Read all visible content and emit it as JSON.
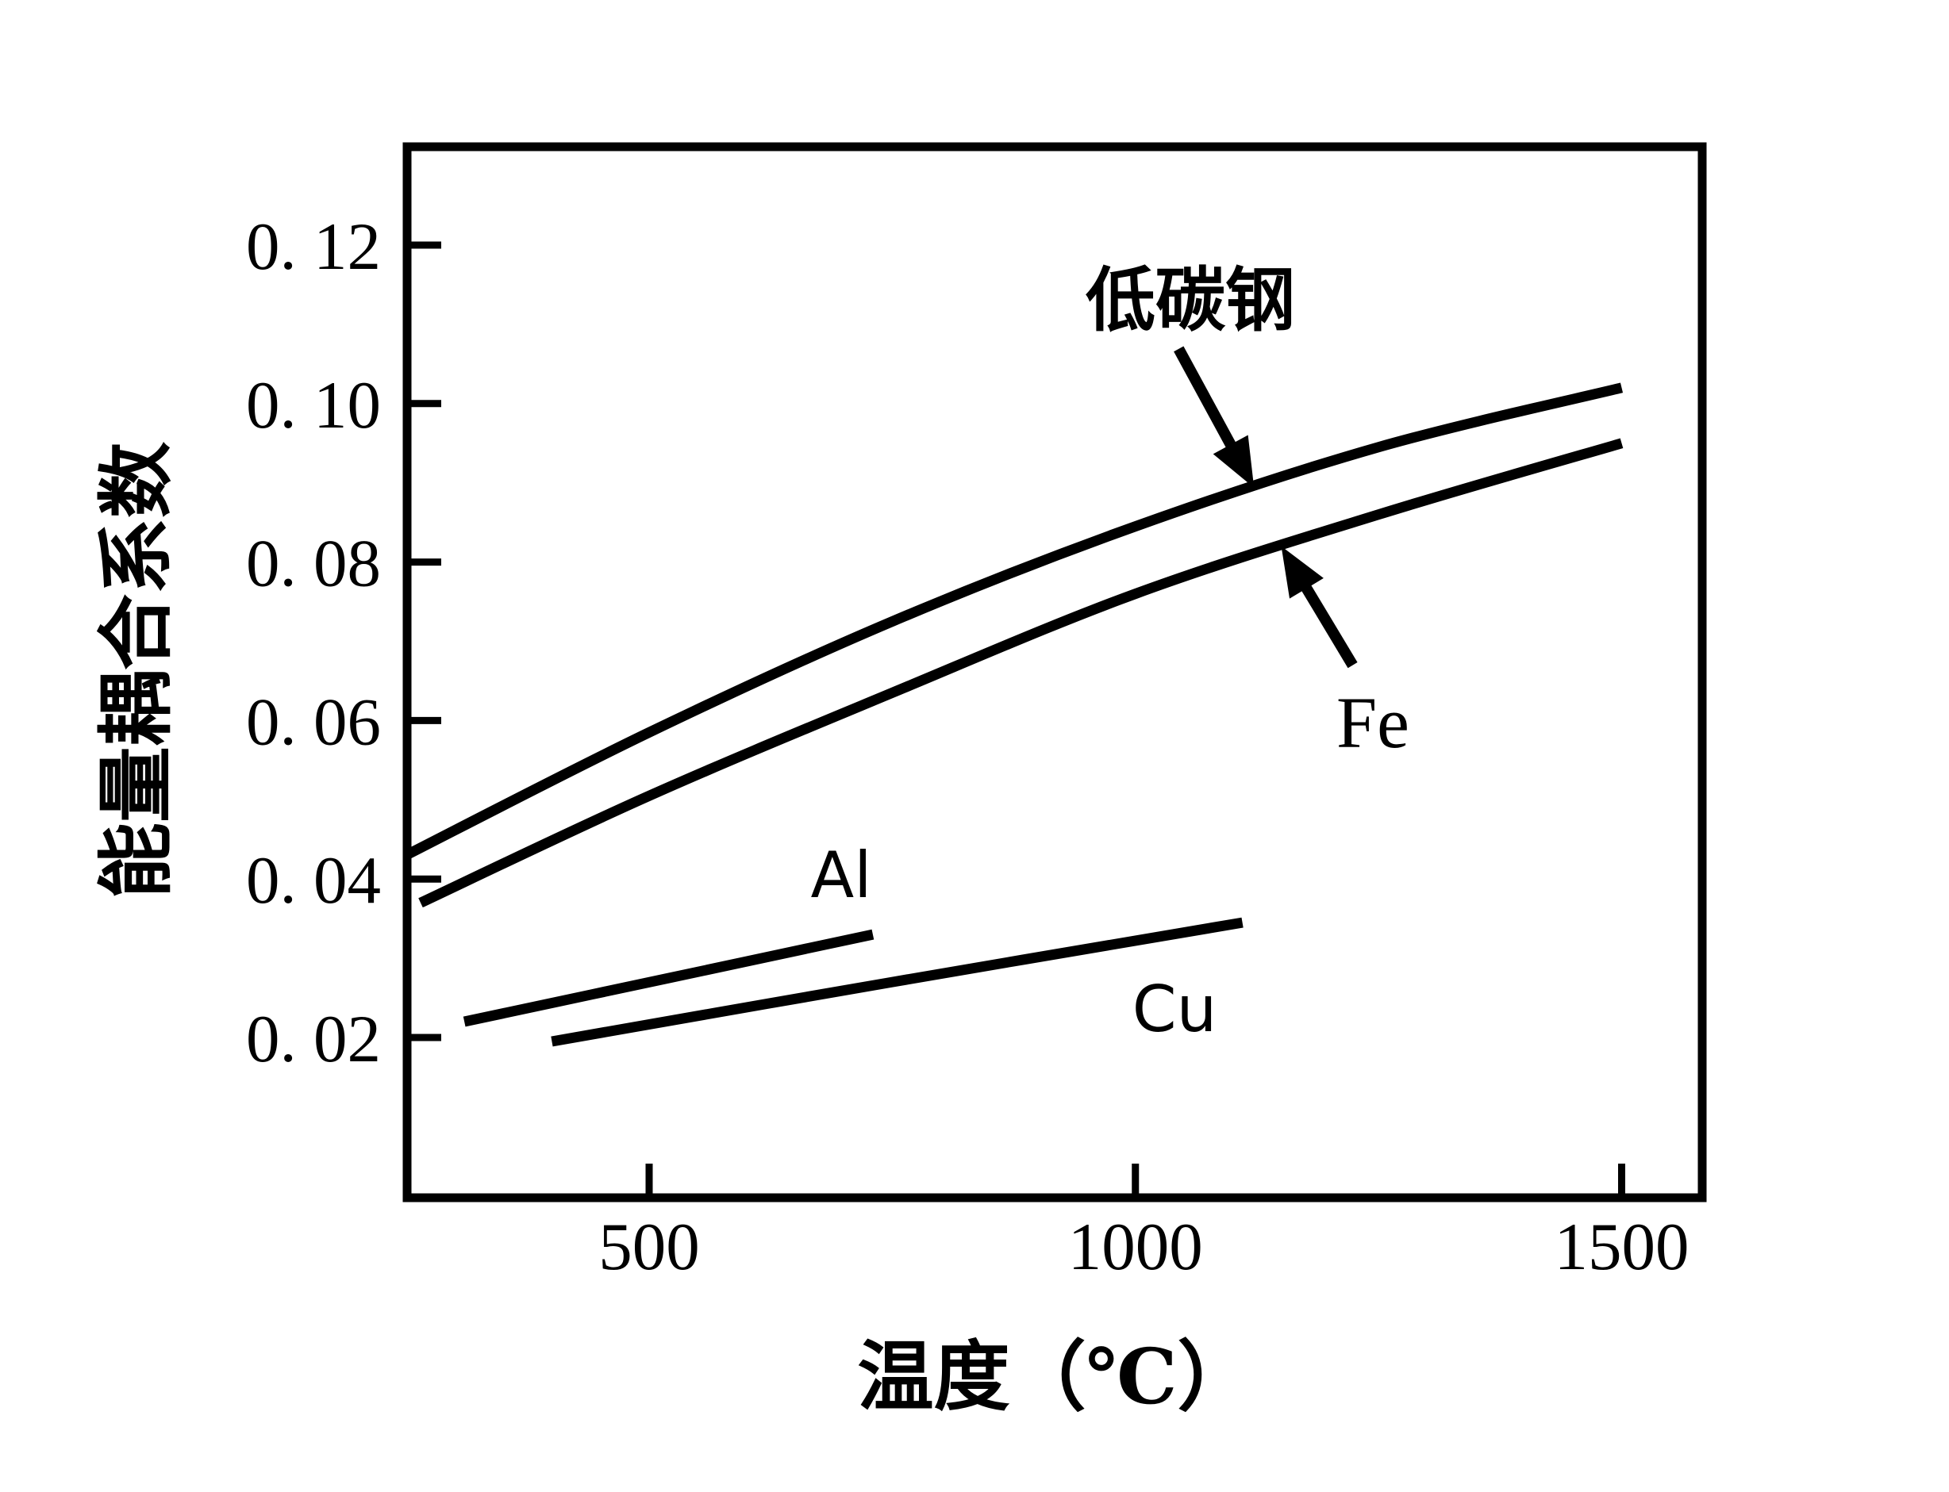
{
  "figure": {
    "background_color": "#ffffff",
    "ink_color": "#000000"
  },
  "chart_data": {
    "type": "line",
    "title": "",
    "xlabel": "温度（℃）",
    "ylabel": "能量耦合系数",
    "grid": false,
    "legend": "inline-annotations-with-arrows",
    "xlim": [
      250,
      1580
    ],
    "ylim": [
      0,
      0.132
    ],
    "x_ticks": [
      500,
      1000,
      1500
    ],
    "x_tick_labels": [
      "500",
      "1000",
      "1500"
    ],
    "y_ticks": [
      0.02,
      0.04,
      0.06,
      0.08,
      0.1,
      0.12
    ],
    "y_tick_labels": [
      "0. 02",
      "0. 04",
      "0. 06",
      "0. 08",
      "0. 10",
      "0. 12"
    ],
    "series": [
      {
        "name": "低碳钢",
        "annotation": "arrow-from-label",
        "x": [
          250,
          500,
          750,
          1000,
          1250,
          1500
        ],
        "values": [
          0.043,
          0.0585,
          0.0725,
          0.0845,
          0.0945,
          0.102
        ]
      },
      {
        "name": "Fe",
        "annotation": "arrow-from-label",
        "x": [
          265,
          500,
          750,
          1000,
          1250,
          1500
        ],
        "values": [
          0.037,
          0.0505,
          0.0635,
          0.076,
          0.086,
          0.095
        ]
      },
      {
        "name": "Al",
        "annotation": "text-above-line",
        "x": [
          310,
          520,
          730
        ],
        "values": [
          0.022,
          0.0275,
          0.033
        ]
      },
      {
        "name": "Cu",
        "annotation": "text-below-line",
        "x": [
          400,
          750,
          1110
        ],
        "values": [
          0.0195,
          0.027,
          0.0345
        ]
      }
    ]
  }
}
